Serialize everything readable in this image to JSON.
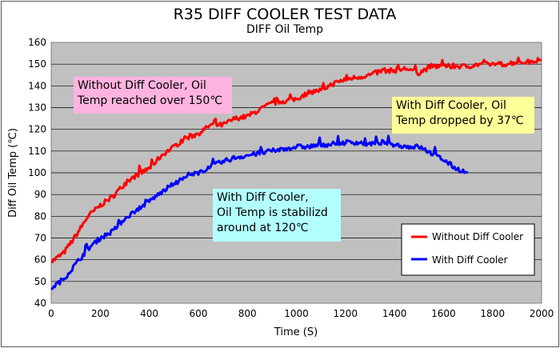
{
  "chart_data": {
    "type": "line",
    "title": "R35 DIFF COOLER TEST DATA",
    "subtitle": "DIFF Oil Temp",
    "xlabel": "Time (S)",
    "ylabel": "Diff Oil Temp (℃)",
    "xlim": [
      0,
      2000
    ],
    "ylim": [
      40,
      160
    ],
    "xticks": [
      "0",
      "200",
      "400",
      "600",
      "800",
      "1000",
      "1200",
      "1400",
      "1600",
      "1800",
      "2000"
    ],
    "yticks": [
      "40",
      "50",
      "60",
      "70",
      "80",
      "90",
      "100",
      "110",
      "120",
      "130",
      "140",
      "150",
      "160"
    ],
    "grid": true,
    "legend_position": "bottom-right",
    "series": [
      {
        "name": "Without Diff Cooler",
        "color": "#ff0000",
        "x": [
          0,
          50,
          100,
          150,
          200,
          250,
          300,
          350,
          400,
          450,
          500,
          550,
          600,
          650,
          700,
          750,
          800,
          850,
          900,
          950,
          1000,
          1050,
          1100,
          1150,
          1200,
          1250,
          1300,
          1350,
          1400,
          1450,
          1500,
          1550,
          1600,
          1650,
          1700,
          1750,
          1800,
          1850,
          1900,
          1950,
          2000
        ],
        "values": [
          59,
          63,
          71,
          80,
          85,
          89,
          95,
          99,
          102,
          108,
          112,
          116,
          118,
          122,
          122,
          125,
          126,
          129,
          132,
          133,
          134,
          137,
          138,
          141,
          143,
          144,
          145,
          147,
          147,
          148,
          146,
          149,
          149,
          149,
          149,
          150,
          150,
          150,
          151,
          151,
          152
        ]
      },
      {
        "name": "With Diff Cooler",
        "color": "#0000ff",
        "x": [
          0,
          50,
          100,
          150,
          200,
          250,
          300,
          350,
          400,
          450,
          500,
          550,
          600,
          650,
          700,
          750,
          800,
          850,
          900,
          950,
          1000,
          1050,
          1100,
          1150,
          1200,
          1250,
          1300,
          1350,
          1400,
          1450,
          1500,
          1550,
          1600,
          1650,
          1700
        ],
        "values": [
          47,
          51,
          58,
          65,
          70,
          73,
          79,
          83,
          87,
          91,
          95,
          98,
          100,
          103,
          105,
          107,
          108,
          109,
          110,
          111,
          112,
          112,
          113,
          113,
          114,
          114,
          113,
          114,
          113,
          112,
          112,
          109,
          106,
          102,
          100
        ]
      }
    ],
    "annotations": [
      {
        "lines": [
          "Without Diff Cooler, Oil",
          "Temp reached over 150℃"
        ],
        "background": "#ffb3de"
      },
      {
        "lines": [
          "With Diff Cooler, Oil",
          "Temp dropped by 37℃"
        ],
        "background": "#ffff99"
      },
      {
        "lines": [
          "With Diff Cooler,",
          "Oil Temp is stabilizd",
          "around at 120℃"
        ],
        "background": "#b3ffff"
      }
    ]
  }
}
